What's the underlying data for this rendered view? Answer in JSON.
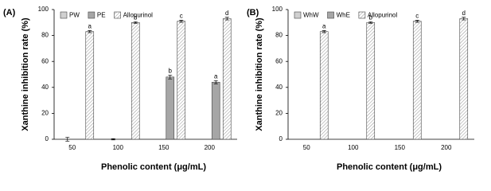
{
  "chart_data": [
    {
      "type": "bar",
      "panel": "(A)",
      "ylabel": "Xanthine inhibition rate (%)",
      "xlabel": "Phenolic content (μg/mL)",
      "categories": [
        "50",
        "100",
        "150",
        "200"
      ],
      "series": [
        {
          "name": "PW",
          "color": "#d0d0d0",
          "values": [
            0,
            0,
            0,
            0
          ],
          "errors": [
            1.5,
            0.5,
            0,
            0
          ],
          "letters": [
            null,
            null,
            null,
            null
          ]
        },
        {
          "name": "PE",
          "color": "#a6a6a6",
          "values": [
            0,
            0,
            48,
            44
          ],
          "errors": [
            0,
            0,
            1.5,
            1.2
          ],
          "letters": [
            null,
            null,
            "b",
            "a"
          ]
        },
        {
          "name": "Allopurinol",
          "color": "#ffffff",
          "hatch": true,
          "values": [
            83,
            90,
            91,
            93
          ],
          "errors": [
            0.8,
            0.6,
            0.8,
            1.0
          ],
          "letters": [
            "a",
            "b",
            "c",
            "d"
          ]
        }
      ],
      "ylim": [
        0,
        100
      ],
      "yticks": [
        0,
        20,
        40,
        60,
        80,
        100
      ],
      "legend": "top-left"
    },
    {
      "type": "bar",
      "panel": "(B)",
      "ylabel": "Xanthine inhibition rate (%)",
      "xlabel": "Phenolic content (μg/mL)",
      "categories": [
        "50",
        "100",
        "150",
        "200"
      ],
      "series": [
        {
          "name": "WhW",
          "color": "#d0d0d0",
          "values": [
            0,
            0,
            0,
            0
          ],
          "errors": [
            0,
            0,
            0,
            0
          ],
          "letters": [
            null,
            null,
            null,
            null
          ]
        },
        {
          "name": "WhE",
          "color": "#a6a6a6",
          "values": [
            0,
            0,
            0,
            0
          ],
          "errors": [
            0,
            0,
            0,
            0
          ],
          "letters": [
            null,
            null,
            null,
            null
          ]
        },
        {
          "name": "Allopurinol",
          "color": "#ffffff",
          "hatch": true,
          "values": [
            83,
            90,
            91,
            93
          ],
          "errors": [
            0.8,
            0.6,
            0.8,
            1.0
          ],
          "letters": [
            "a",
            "b",
            "c",
            "d"
          ]
        }
      ],
      "ylim": [
        0,
        100
      ],
      "yticks": [
        0,
        20,
        40,
        60,
        80,
        100
      ],
      "legend": "top-left"
    }
  ]
}
